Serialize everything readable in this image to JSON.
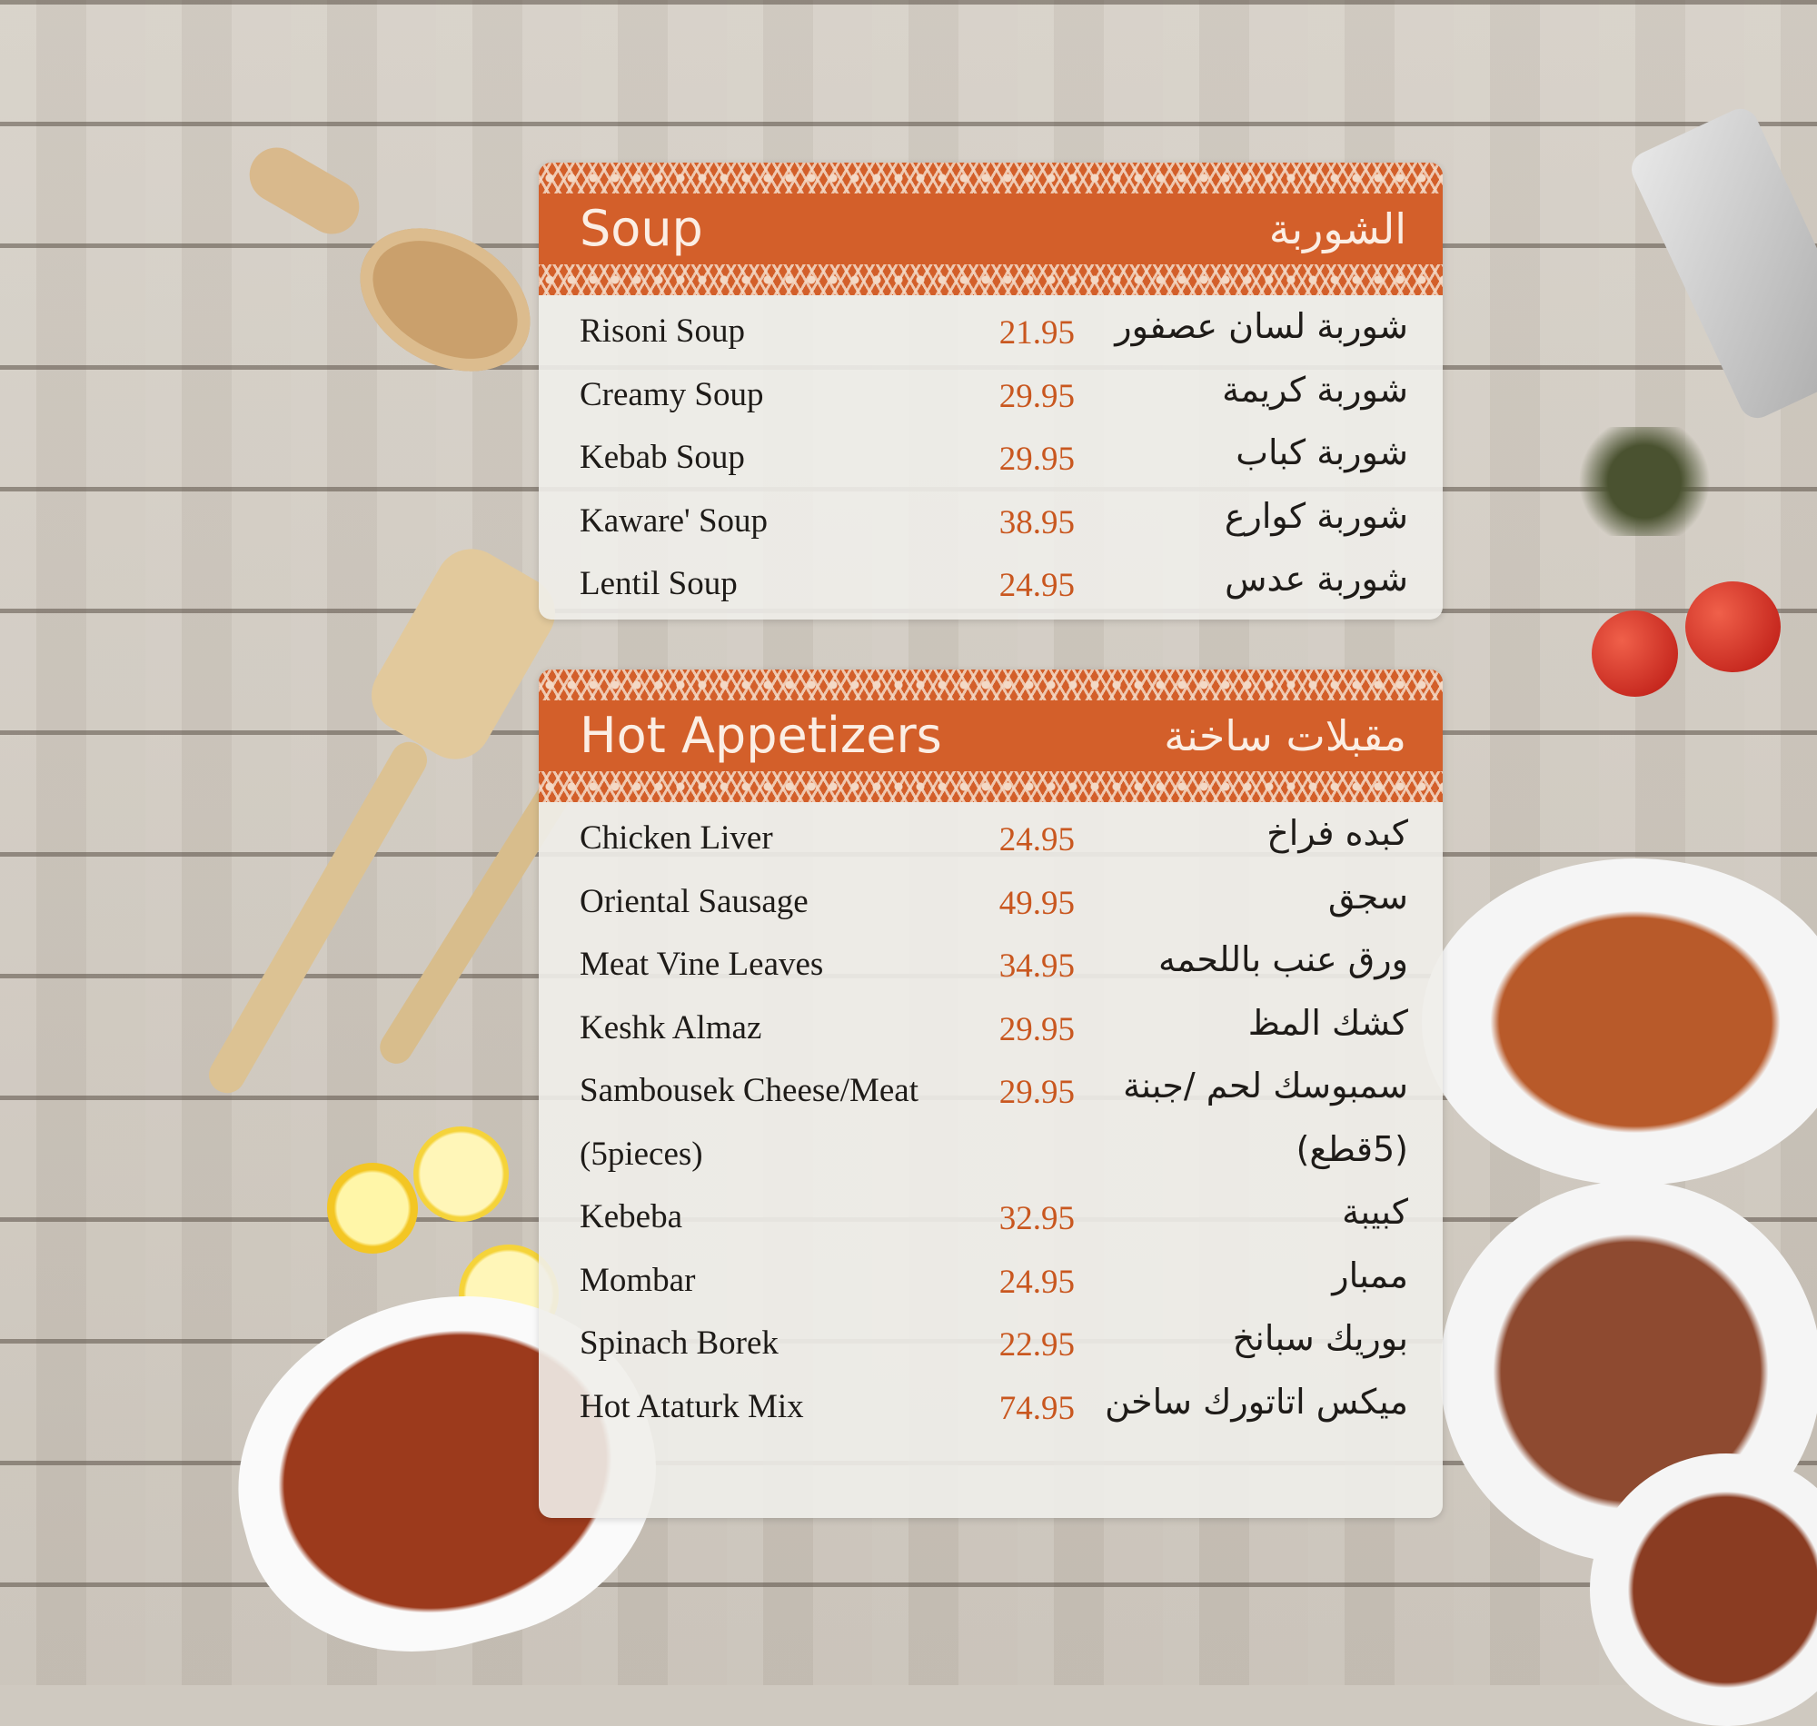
{
  "colors": {
    "accent": "#d35f2a",
    "price": "#c9571f",
    "text": "#1e1b18"
  },
  "sections": [
    {
      "title_en": "Soup",
      "title_ar": "الشوربة",
      "items": [
        {
          "name": "Risoni Soup",
          "price": "21.95",
          "name_ar": "شوربة لسان عصفور"
        },
        {
          "name": "Creamy Soup",
          "price": "29.95",
          "name_ar": "شوربة كريمة"
        },
        {
          "name": "Kebab Soup",
          "price": "29.95",
          "name_ar": "شوربة كباب"
        },
        {
          "name": "Kaware' Soup",
          "price": "38.95",
          "name_ar": "شوربة كوارع"
        },
        {
          "name": "Lentil Soup",
          "price": "24.95",
          "name_ar": "شوربة عدس"
        }
      ]
    },
    {
      "title_en": "Hot Appetizers",
      "title_ar": "مقبلات ساخنة",
      "items": [
        {
          "name": "Chicken Liver",
          "price": "24.95",
          "name_ar": "كبده فراخ"
        },
        {
          "name": "Oriental Sausage",
          "price": "49.95",
          "name_ar": "سجق"
        },
        {
          "name": "Meat Vine Leaves",
          "price": "34.95",
          "name_ar": "ورق عنب باللحمه"
        },
        {
          "name": "Keshk Almaz",
          "price": "29.95",
          "name_ar": "كشك المظ"
        },
        {
          "name": "Sambousek Cheese/Meat",
          "price": "29.95",
          "name_ar": "سمبوسك لحم /جبنة"
        },
        {
          "name": "(5pieces)",
          "price": "",
          "name_ar": "(5قطع)"
        },
        {
          "name": "Kebeba",
          "price": "32.95",
          "name_ar": "كبيبة"
        },
        {
          "name": "Mombar",
          "price": "24.95",
          "name_ar": "ممبار"
        },
        {
          "name": "Spinach Borek",
          "price": "22.95",
          "name_ar": "بوريك سبانخ"
        },
        {
          "name": "Hot Ataturk Mix",
          "price": "74.95",
          "name_ar": "ميكس اتاتورك ساخن"
        }
      ]
    }
  ]
}
